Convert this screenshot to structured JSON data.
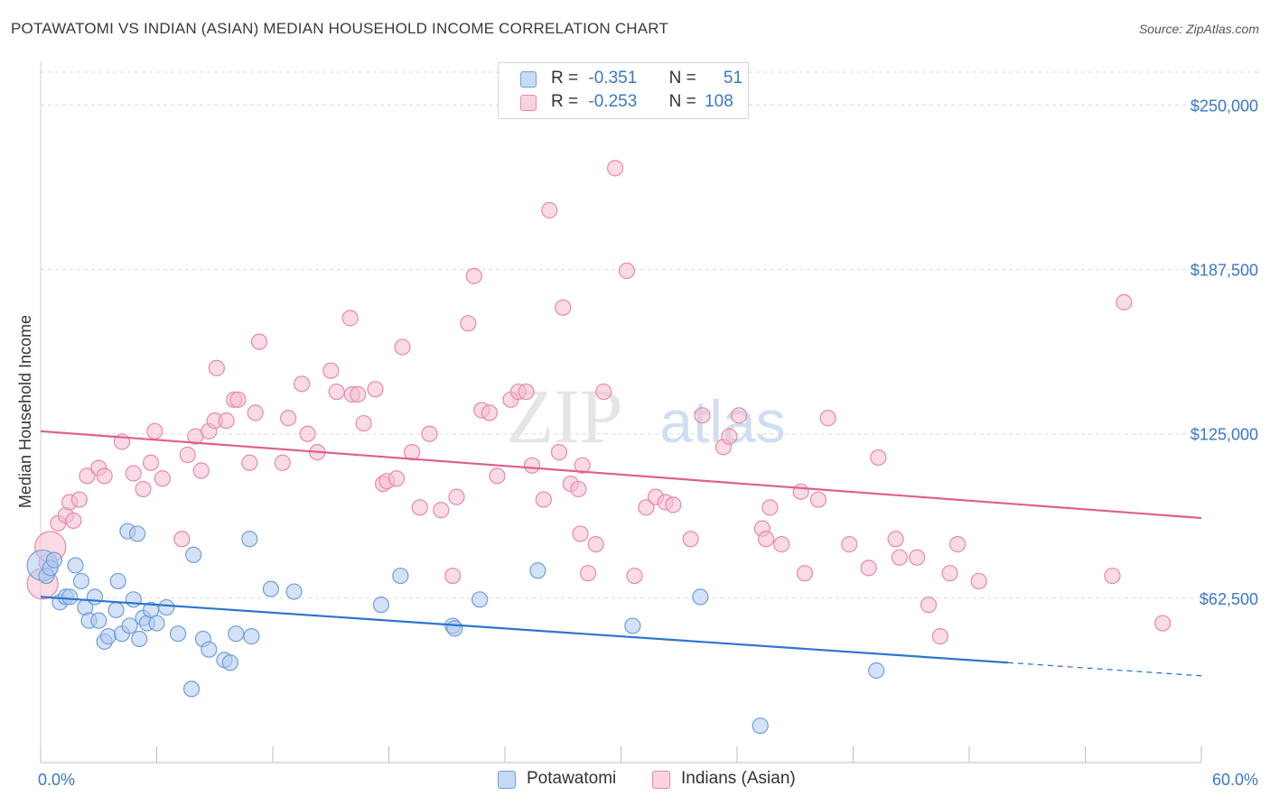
{
  "header": {
    "title": "POTAWATOMI VS INDIAN (ASIAN) MEDIAN HOUSEHOLD INCOME CORRELATION CHART",
    "source": "Source: ZipAtlas.com"
  },
  "watermark": {
    "zip": "ZIP",
    "atlas": "atlas"
  },
  "legend_top": {
    "r_label": "R =",
    "n_label": "N =",
    "rows": [
      {
        "r": "-0.351",
        "n": "51"
      },
      {
        "r": "-0.253",
        "n": "108"
      }
    ]
  },
  "legend_bottom": {
    "items": [
      "Potawatomi",
      "Indians (Asian)"
    ]
  },
  "colors": {
    "blue_fill": "#aecbf0",
    "blue_stroke": "#6f9fd8",
    "blue_line": "#2f74d0",
    "pink_fill": "#f6bccd",
    "pink_stroke": "#e68aa6",
    "pink_line": "#e0608a",
    "axis_label": "#3a78c6",
    "grid": "#dcdcdc"
  },
  "chart_data": {
    "type": "scatter",
    "title": "POTAWATOMI VS INDIAN (ASIAN) MEDIAN HOUSEHOLD INCOME CORRELATION CHART",
    "xlabel": "",
    "ylabel": "Median Household Income",
    "xlim": [
      0,
      60
    ],
    "ylim": [
      0,
      262500
    ],
    "x_tick_labels": [
      "0.0%",
      "60.0%"
    ],
    "y_ticks": [
      62500,
      125000,
      187500,
      250000
    ],
    "y_tick_labels": [
      "$62,500",
      "$125,000",
      "$187,500",
      "$250,000"
    ],
    "grid": true,
    "legend_position": "top-center",
    "series": [
      {
        "name": "Potawatomi",
        "color": "#6f9fd8",
        "r": -0.351,
        "n": 51,
        "trend": {
          "x0": 0,
          "y0": 63000,
          "x1": 50,
          "y1": 38000,
          "dashed_to_x": 60,
          "dashed_to_y": 33000
        },
        "points": [
          [
            0.1,
            75000,
            "large"
          ],
          [
            0.3,
            71000
          ],
          [
            0.5,
            74000
          ],
          [
            0.7,
            77000
          ],
          [
            1.0,
            61000
          ],
          [
            1.3,
            63000
          ],
          [
            1.5,
            63000
          ],
          [
            1.8,
            75000
          ],
          [
            2.1,
            69000
          ],
          [
            2.3,
            59000
          ],
          [
            2.5,
            54000
          ],
          [
            2.8,
            63000
          ],
          [
            3.0,
            54000
          ],
          [
            3.3,
            46000
          ],
          [
            3.5,
            48000
          ],
          [
            3.9,
            58000
          ],
          [
            4.0,
            69000
          ],
          [
            4.2,
            49000
          ],
          [
            4.5,
            88000
          ],
          [
            4.6,
            52000
          ],
          [
            4.8,
            62000
          ],
          [
            5.0,
            87000
          ],
          [
            5.1,
            47000
          ],
          [
            5.3,
            55000
          ],
          [
            5.5,
            53000
          ],
          [
            5.7,
            58000
          ],
          [
            6.0,
            53000
          ],
          [
            6.5,
            59000
          ],
          [
            7.1,
            49000
          ],
          [
            7.8,
            28000
          ],
          [
            7.9,
            79000
          ],
          [
            8.4,
            47000
          ],
          [
            8.7,
            43000
          ],
          [
            9.5,
            39000
          ],
          [
            9.8,
            38000
          ],
          [
            10.1,
            49000
          ],
          [
            10.8,
            85000
          ],
          [
            10.9,
            48000
          ],
          [
            11.9,
            66000
          ],
          [
            13.1,
            65000
          ],
          [
            17.6,
            60000
          ],
          [
            18.6,
            71000
          ],
          [
            21.3,
            52000
          ],
          [
            21.4,
            51000
          ],
          [
            22.7,
            62000
          ],
          [
            25.7,
            73000
          ],
          [
            30.6,
            52000
          ],
          [
            34.1,
            63000
          ],
          [
            37.2,
            14000
          ],
          [
            43.2,
            35000
          ]
        ]
      },
      {
        "name": "Indians (Asian)",
        "color": "#e68aa6",
        "r": -0.253,
        "n": 108,
        "trend": {
          "x0": 0,
          "y0": 126000,
          "x1": 60,
          "y1": 93000
        },
        "points": [
          [
            0.1,
            68000,
            "large"
          ],
          [
            0.3,
            76000
          ],
          [
            0.5,
            82000,
            "large"
          ],
          [
            0.9,
            91000
          ],
          [
            1.3,
            94000
          ],
          [
            1.5,
            99000
          ],
          [
            1.7,
            92000
          ],
          [
            2.0,
            100000
          ],
          [
            2.4,
            109000
          ],
          [
            3.0,
            112000
          ],
          [
            3.3,
            109000
          ],
          [
            4.2,
            122000
          ],
          [
            4.8,
            110000
          ],
          [
            5.3,
            104000
          ],
          [
            5.7,
            114000
          ],
          [
            6.3,
            108000
          ],
          [
            5.9,
            126000
          ],
          [
            7.3,
            85000
          ],
          [
            7.6,
            117000
          ],
          [
            8.0,
            124000
          ],
          [
            8.3,
            111000
          ],
          [
            8.7,
            126000
          ],
          [
            9.0,
            130000
          ],
          [
            9.1,
            150000
          ],
          [
            9.6,
            130000
          ],
          [
            10.0,
            138000
          ],
          [
            10.2,
            138000
          ],
          [
            10.8,
            114000
          ],
          [
            11.1,
            133000
          ],
          [
            11.3,
            160000
          ],
          [
            12.5,
            114000
          ],
          [
            12.8,
            131000
          ],
          [
            13.5,
            144000
          ],
          [
            13.8,
            125000
          ],
          [
            14.3,
            118000
          ],
          [
            15.0,
            149000
          ],
          [
            15.3,
            141000
          ],
          [
            16.0,
            169000
          ],
          [
            16.1,
            140000
          ],
          [
            16.4,
            140000
          ],
          [
            16.7,
            129000
          ],
          [
            17.3,
            142000
          ],
          [
            17.7,
            106000
          ],
          [
            17.9,
            107000
          ],
          [
            18.4,
            108000
          ],
          [
            18.7,
            158000
          ],
          [
            19.2,
            118000
          ],
          [
            19.6,
            97000
          ],
          [
            20.1,
            125000
          ],
          [
            20.7,
            96000
          ],
          [
            21.3,
            71000
          ],
          [
            21.5,
            101000
          ],
          [
            22.1,
            167000
          ],
          [
            22.4,
            185000
          ],
          [
            22.8,
            134000
          ],
          [
            23.2,
            133000
          ],
          [
            23.6,
            109000
          ],
          [
            24.3,
            138000
          ],
          [
            24.7,
            141000
          ],
          [
            25.1,
            141000
          ],
          [
            25.4,
            113000
          ],
          [
            26.0,
            100000
          ],
          [
            26.3,
            210000
          ],
          [
            26.8,
            118000
          ],
          [
            27.0,
            173000
          ],
          [
            27.4,
            106000
          ],
          [
            27.8,
            104000
          ],
          [
            27.9,
            87000
          ],
          [
            28.0,
            113000
          ],
          [
            28.3,
            72000
          ],
          [
            28.7,
            83000
          ],
          [
            29.1,
            141000
          ],
          [
            29.7,
            226000
          ],
          [
            30.3,
            187000
          ],
          [
            30.7,
            71000
          ],
          [
            31.3,
            97000
          ],
          [
            31.8,
            101000
          ],
          [
            32.3,
            99000
          ],
          [
            32.7,
            98000
          ],
          [
            33.6,
            85000
          ],
          [
            34.2,
            132000
          ],
          [
            35.3,
            120000
          ],
          [
            35.6,
            124000
          ],
          [
            36.1,
            132000
          ],
          [
            37.3,
            89000
          ],
          [
            37.5,
            85000
          ],
          [
            37.7,
            97000
          ],
          [
            38.3,
            83000
          ],
          [
            39.3,
            103000
          ],
          [
            39.5,
            72000
          ],
          [
            40.2,
            100000
          ],
          [
            40.7,
            131000
          ],
          [
            41.8,
            83000
          ],
          [
            42.8,
            74000
          ],
          [
            43.3,
            116000
          ],
          [
            44.2,
            85000
          ],
          [
            44.4,
            78000
          ],
          [
            45.3,
            78000
          ],
          [
            45.9,
            60000
          ],
          [
            46.5,
            48000
          ],
          [
            47.0,
            72000
          ],
          [
            47.4,
            83000
          ],
          [
            48.5,
            69000
          ],
          [
            55.4,
            71000
          ],
          [
            56.0,
            175000
          ],
          [
            58.0,
            53000
          ]
        ]
      }
    ]
  }
}
